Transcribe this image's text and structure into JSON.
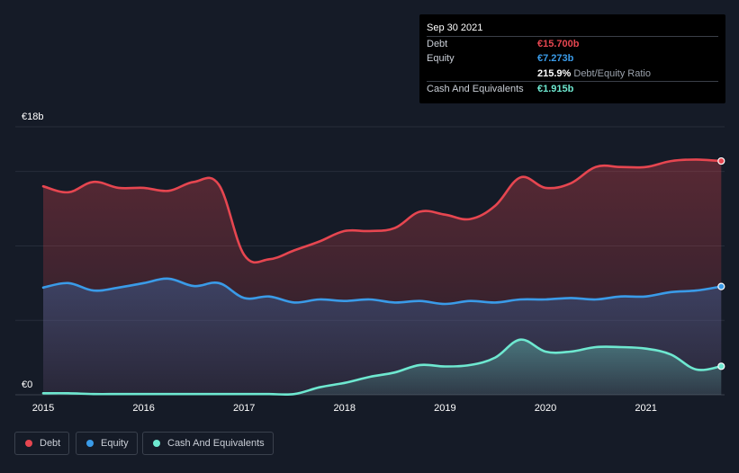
{
  "tooltip": {
    "date": "Sep 30 2021",
    "debt_label": "Debt",
    "debt_value": "€15.700b",
    "equity_label": "Equity",
    "equity_value": "€7.273b",
    "ratio_value": "215.9%",
    "ratio_label": "Debt/Equity Ratio",
    "cash_label": "Cash And Equivalents",
    "cash_value": "€1.915b"
  },
  "legend": {
    "debt": "Debt",
    "equity": "Equity",
    "cash": "Cash And Equivalents"
  },
  "colors": {
    "debt": "#e64650",
    "equity": "#3a9be8",
    "cash": "#6ee8d0",
    "background": "#151b27"
  },
  "chart_data": {
    "type": "area",
    "title": "",
    "xlabel": "",
    "ylabel": "",
    "ylim": [
      0,
      18
    ],
    "y_ticks": [
      {
        "value": 18,
        "label": "€18b"
      },
      {
        "value": 0,
        "label": "€0"
      }
    ],
    "x_ticks": [
      {
        "value": 2015.0,
        "label": "2015"
      },
      {
        "value": 2016.0,
        "label": "2016"
      },
      {
        "value": 2017.0,
        "label": "2017"
      },
      {
        "value": 2018.0,
        "label": "2018"
      },
      {
        "value": 2019.0,
        "label": "2019"
      },
      {
        "value": 2020.0,
        "label": "2020"
      },
      {
        "value": 2021.0,
        "label": "2021"
      }
    ],
    "series": [
      {
        "name": "Debt",
        "key": "debt",
        "points": [
          [
            2015.0,
            14.0
          ],
          [
            2015.25,
            13.6
          ],
          [
            2015.5,
            14.3
          ],
          [
            2015.75,
            13.9
          ],
          [
            2016.0,
            13.9
          ],
          [
            2016.25,
            13.7
          ],
          [
            2016.5,
            14.3
          ],
          [
            2016.75,
            14.1
          ],
          [
            2017.0,
            9.4
          ],
          [
            2017.25,
            9.1
          ],
          [
            2017.5,
            9.7
          ],
          [
            2017.75,
            10.3
          ],
          [
            2018.0,
            11.0
          ],
          [
            2018.25,
            11.0
          ],
          [
            2018.5,
            11.2
          ],
          [
            2018.75,
            12.3
          ],
          [
            2019.0,
            12.1
          ],
          [
            2019.25,
            11.8
          ],
          [
            2019.5,
            12.7
          ],
          [
            2019.75,
            14.6
          ],
          [
            2020.0,
            13.9
          ],
          [
            2020.25,
            14.2
          ],
          [
            2020.5,
            15.3
          ],
          [
            2020.75,
            15.3
          ],
          [
            2021.0,
            15.3
          ],
          [
            2021.25,
            15.7
          ],
          [
            2021.5,
            15.8
          ],
          [
            2021.75,
            15.7
          ]
        ]
      },
      {
        "name": "Equity",
        "key": "equity",
        "points": [
          [
            2015.0,
            7.2
          ],
          [
            2015.25,
            7.5
          ],
          [
            2015.5,
            7.0
          ],
          [
            2015.75,
            7.2
          ],
          [
            2016.0,
            7.5
          ],
          [
            2016.25,
            7.8
          ],
          [
            2016.5,
            7.3
          ],
          [
            2016.75,
            7.5
          ],
          [
            2017.0,
            6.5
          ],
          [
            2017.25,
            6.6
          ],
          [
            2017.5,
            6.2
          ],
          [
            2017.75,
            6.4
          ],
          [
            2018.0,
            6.3
          ],
          [
            2018.25,
            6.4
          ],
          [
            2018.5,
            6.2
          ],
          [
            2018.75,
            6.3
          ],
          [
            2019.0,
            6.1
          ],
          [
            2019.25,
            6.3
          ],
          [
            2019.5,
            6.2
          ],
          [
            2019.75,
            6.4
          ],
          [
            2020.0,
            6.4
          ],
          [
            2020.25,
            6.5
          ],
          [
            2020.5,
            6.4
          ],
          [
            2020.75,
            6.6
          ],
          [
            2021.0,
            6.6
          ],
          [
            2021.25,
            6.9
          ],
          [
            2021.5,
            7.0
          ],
          [
            2021.75,
            7.273
          ]
        ]
      },
      {
        "name": "Cash And Equivalents",
        "key": "cash",
        "points": [
          [
            2015.0,
            0.1
          ],
          [
            2015.25,
            0.1
          ],
          [
            2015.5,
            0.05
          ],
          [
            2015.75,
            0.05
          ],
          [
            2016.0,
            0.05
          ],
          [
            2016.25,
            0.05
          ],
          [
            2016.5,
            0.05
          ],
          [
            2016.75,
            0.05
          ],
          [
            2017.0,
            0.05
          ],
          [
            2017.25,
            0.05
          ],
          [
            2017.5,
            0.05
          ],
          [
            2017.75,
            0.5
          ],
          [
            2018.0,
            0.8
          ],
          [
            2018.25,
            1.2
          ],
          [
            2018.5,
            1.5
          ],
          [
            2018.75,
            2.0
          ],
          [
            2019.0,
            1.9
          ],
          [
            2019.25,
            2.0
          ],
          [
            2019.5,
            2.5
          ],
          [
            2019.75,
            3.7
          ],
          [
            2020.0,
            2.9
          ],
          [
            2020.25,
            2.9
          ],
          [
            2020.5,
            3.2
          ],
          [
            2020.75,
            3.2
          ],
          [
            2021.0,
            3.1
          ],
          [
            2021.25,
            2.7
          ],
          [
            2021.5,
            1.7
          ],
          [
            2021.75,
            1.915
          ]
        ]
      }
    ]
  }
}
